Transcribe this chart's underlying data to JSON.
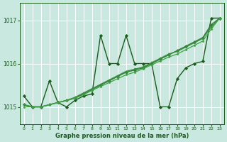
{
  "title": "Graphe pression niveau de la mer (hPa)",
  "bg_color": "#c8e8e0",
  "grid_color": "#ffffff",
  "line_color_dark": "#1a5c1a",
  "ylim": [
    1014.6,
    1017.4
  ],
  "yticks": [
    1015,
    1016,
    1017
  ],
  "xlim": [
    -0.5,
    23.5
  ],
  "xticks": [
    0,
    1,
    2,
    3,
    4,
    5,
    6,
    7,
    8,
    9,
    10,
    11,
    12,
    13,
    14,
    15,
    16,
    17,
    18,
    19,
    20,
    21,
    22,
    23
  ],
  "series": [
    {
      "x": [
        0,
        1,
        2,
        3,
        4,
        5,
        6,
        7,
        8,
        9,
        10,
        11,
        12,
        13,
        14,
        15,
        16,
        17,
        18,
        19,
        20,
        21,
        22,
        23
      ],
      "y": [
        1015.25,
        1015.0,
        1015.0,
        1015.6,
        1015.1,
        1015.0,
        1015.15,
        1015.25,
        1015.3,
        1016.65,
        1016.0,
        1016.0,
        1016.65,
        1016.0,
        1016.0,
        1016.0,
        1015.0,
        1015.0,
        1015.65,
        1015.9,
        1016.0,
        1016.05,
        1017.05,
        1017.05
      ],
      "color": "#1a5c1a",
      "lw": 1.0,
      "marker": "D",
      "ms": 2.2
    },
    {
      "x": [
        0,
        1,
        2,
        3,
        4,
        5,
        6,
        7,
        8,
        9,
        10,
        11,
        12,
        13,
        14,
        15,
        16,
        17,
        18,
        19,
        20,
        21,
        22,
        23
      ],
      "y": [
        1015.05,
        1015.0,
        1015.0,
        1015.05,
        1015.1,
        1015.15,
        1015.2,
        1015.3,
        1015.4,
        1015.5,
        1015.6,
        1015.7,
        1015.8,
        1015.85,
        1015.9,
        1016.0,
        1016.1,
        1016.2,
        1016.3,
        1016.4,
        1016.5,
        1016.6,
        1016.9,
        1017.05
      ],
      "color": "#2e7d32",
      "lw": 1.0,
      "marker": "D",
      "ms": 2.0
    },
    {
      "x": [
        0,
        1,
        2,
        3,
        4,
        5,
        6,
        7,
        8,
        9,
        10,
        11,
        12,
        13,
        14,
        15,
        16,
        17,
        18,
        19,
        20,
        21,
        22,
        23
      ],
      "y": [
        1015.05,
        1015.0,
        1015.0,
        1015.05,
        1015.1,
        1015.15,
        1015.22,
        1015.32,
        1015.42,
        1015.52,
        1015.62,
        1015.72,
        1015.82,
        1015.87,
        1015.92,
        1016.02,
        1016.12,
        1016.22,
        1016.28,
        1016.38,
        1016.48,
        1016.58,
        1016.85,
        1017.05
      ],
      "color": "#388e3c",
      "lw": 1.0,
      "marker": "D",
      "ms": 1.8
    },
    {
      "x": [
        0,
        1,
        2,
        3,
        4,
        5,
        6,
        7,
        8,
        9,
        10,
        11,
        12,
        13,
        14,
        15,
        16,
        17,
        18,
        19,
        20,
        21,
        22,
        23
      ],
      "y": [
        1015.0,
        1015.0,
        1015.0,
        1015.05,
        1015.1,
        1015.14,
        1015.2,
        1015.28,
        1015.38,
        1015.47,
        1015.56,
        1015.65,
        1015.74,
        1015.8,
        1015.88,
        1015.97,
        1016.06,
        1016.15,
        1016.22,
        1016.32,
        1016.42,
        1016.52,
        1016.8,
        1017.05
      ],
      "color": "#43a047",
      "lw": 0.9,
      "marker": "D",
      "ms": 1.5
    }
  ]
}
